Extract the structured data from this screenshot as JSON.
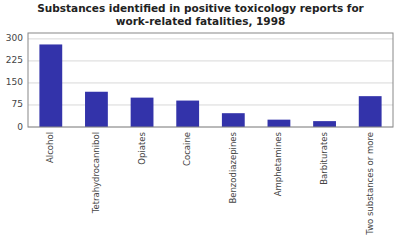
{
  "chart_data": {
    "type": "bar",
    "title": "Substances identified in positive toxicology reports for\nwork-related fatalities, 1998",
    "categories": [
      "Alcohol",
      "Tetrahydrocannibol",
      "Opiates",
      "Cocaine",
      "Benzodiazepines",
      "Amphetamines",
      "Barbiturates",
      "Two substances or more"
    ],
    "values": [
      281,
      120,
      100,
      90,
      47,
      25,
      20,
      105
    ],
    "color": "#3333aa",
    "ylim": [
      0,
      320
    ],
    "yticks": [
      0,
      75,
      150,
      225,
      300
    ],
    "grid": true
  }
}
